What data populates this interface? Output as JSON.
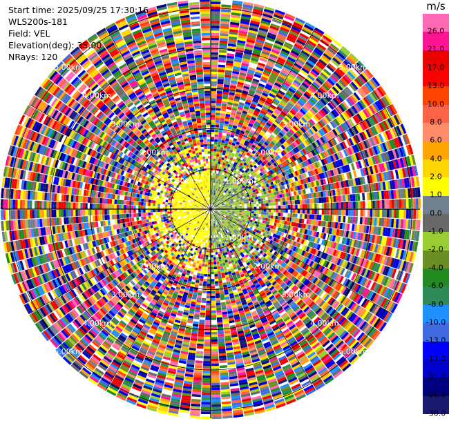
{
  "info": {
    "start_time": "Start time: 2025/09/25 17:30:16",
    "station": "WLS200s-181",
    "field": "Field: VEL",
    "elevation": "Elevation(deg): 35.00",
    "nrays": "NRays: 120"
  },
  "chart_data": {
    "type": "heatmap",
    "projection": "polar (PPI)",
    "nrays": 120,
    "max_range_km": 5.2,
    "range_rings_km": [
      1,
      2,
      3,
      4,
      5
    ],
    "ring_labels": [
      "1.00km",
      "2.00km",
      "3.00km",
      "4.00km",
      "5.00km"
    ],
    "colorbar": {
      "unit": "m/s",
      "levels": [
        26.0,
        21.0,
        17.0,
        13.0,
        10.0,
        8.0,
        6.0,
        4.0,
        2.0,
        1.0,
        0.0,
        -1.0,
        -2.0,
        -4.0,
        -6.0,
        -8.0,
        -10.0,
        -13.0,
        -17.0,
        -21.0,
        -26.0,
        -30.0
      ],
      "tick_labels": [
        "26.0",
        "21.0",
        "17.0",
        "13.0",
        "10.0",
        "8.0",
        "6.0",
        "4.0",
        "2.0",
        "1.0",
        "0.0",
        "-1.0",
        "-2.0",
        "-4.0",
        "-6.0",
        "-8.0",
        "-10.0",
        "-13.0",
        "-17.0",
        "-21.0",
        "-26.0",
        "-30.0"
      ],
      "colors": [
        "#ff69b4",
        "#ff1493",
        "#ee0000",
        "#ff0000",
        "#ff4500",
        "#ff6347",
        "#ff8c69",
        "#ffa500",
        "#ffd700",
        "#ffff00",
        "#708090",
        "#696969",
        "#9acd32",
        "#6b8e23",
        "#228b22",
        "#2e8b57",
        "#1e90ff",
        "#4169e1",
        "#0000ff",
        "#0000cd",
        "#000080",
        "#191970"
      ]
    }
  }
}
